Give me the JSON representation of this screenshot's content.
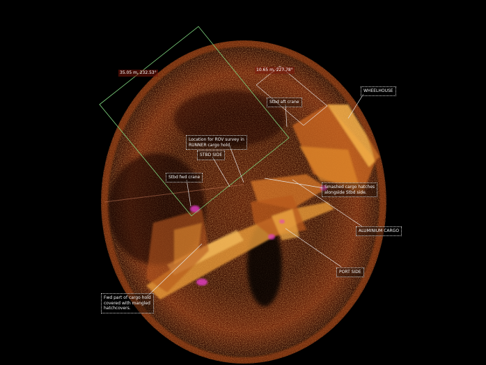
{
  "colors": {
    "background": "#000000",
    "sonar_dark": "#2a0a03",
    "sonar_mid": "#8a2c0a",
    "sonar_bright": "#f0a23a",
    "highlight_magenta": "#e63cc8",
    "callout_line": "#e8e8e8",
    "measure_box_line": "#7fd67f"
  },
  "measurements": {
    "left": "35.05 m, 232.53°",
    "right": "10.65 m, 227.78°"
  },
  "labels": {
    "stbd_aft_crane": "Stbd aft crane",
    "wheelhouse": "WHEELHOUSE",
    "rov_location": "Location for ROV survey in\nRUNNER cargo hold.",
    "stbd_side": "STBD SIDE",
    "stbd_fwd_crane": "Stbd fwd crane",
    "smashed_hatches": "Smashed cargo hatches\nalongside Stbd side.",
    "aluminium_cargo": "ALUMINIUM CARGO",
    "port_side": "PORT SIDE",
    "fwd_cargo_hold": "Fwd part of cargo hold\ncovered with mangled\nhatchcovers."
  }
}
